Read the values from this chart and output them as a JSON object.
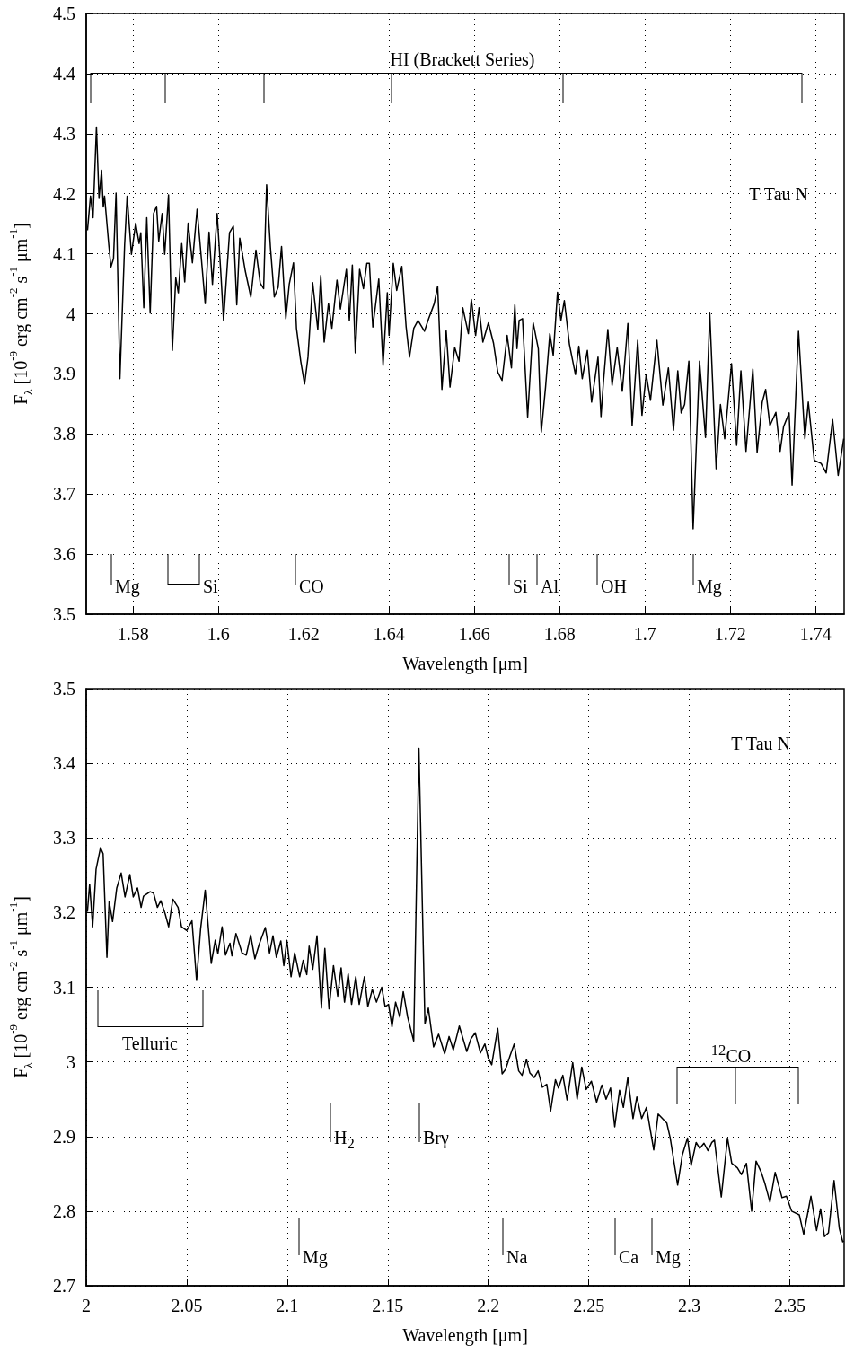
{
  "chart_data": [
    {
      "type": "line",
      "xlabel": "Wavelength [μm]",
      "ylabel": "F$_{λ}$ [10$^{-9}$ erg cm$^{-2}$ s$^{-1}$ μm$^{-1}$]",
      "xlim": [
        1.569,
        1.7467
      ],
      "ylim": [
        3.5,
        4.5
      ],
      "xticks": [
        1.58,
        1.6,
        1.62,
        1.64,
        1.66,
        1.68,
        1.7,
        1.72,
        1.74
      ],
      "yticks": [
        3.5,
        3.6,
        3.7,
        3.8,
        3.9,
        4,
        4.1,
        4.2,
        4.3,
        4.4,
        4.5
      ],
      "grid": true,
      "marker": "none",
      "line_style": "solid",
      "annotations": [
        "T Tau N",
        "HI (Brackett Series)",
        "Mg",
        "Si",
        "CO",
        "Si",
        "Al",
        "OH",
        "Mg"
      ],
      "series": [
        {
          "color": "#000000",
          "x": [
            1.5693,
            1.57,
            1.5706,
            1.5714,
            1.572,
            1.5726,
            1.573,
            1.5733,
            1.5743,
            1.5748,
            1.5754,
            1.576,
            1.5769,
            1.578,
            1.5786,
            1.5796,
            1.5806,
            1.5814,
            1.5818,
            1.5825,
            1.5832,
            1.584,
            1.5848,
            1.5855,
            1.586,
            1.5868,
            1.5874,
            1.5883,
            1.5892,
            1.59,
            1.5906,
            1.5914,
            1.5921,
            1.5929,
            1.5939,
            1.595,
            1.596,
            1.5969,
            1.5978,
            1.5986,
            1.5997,
            1.6006,
            1.6012,
            1.6026,
            1.6035,
            1.6043,
            1.605,
            1.6063,
            1.6076,
            1.6088,
            1.6098,
            1.6106,
            1.6113,
            1.6122,
            1.6131,
            1.614,
            1.6148,
            1.6158,
            1.6166,
            1.6176,
            1.6183,
            1.6193,
            1.6202,
            1.621,
            1.6221,
            1.6233,
            1.624,
            1.6248,
            1.6258,
            1.6266,
            1.6278,
            1.6286,
            1.63,
            1.6307,
            1.6314,
            1.6321,
            1.6331,
            1.634,
            1.6348,
            1.6354,
            1.6362,
            1.6376,
            1.6386,
            1.6396,
            1.64,
            1.641,
            1.6418,
            1.643,
            1.644,
            1.6448,
            1.6458,
            1.6468,
            1.6483,
            1.6493,
            1.6506,
            1.6514,
            1.6524,
            1.6534,
            1.6543,
            1.6554,
            1.6564,
            1.6573,
            1.6586,
            1.6593,
            1.6603,
            1.6611,
            1.662,
            1.6633,
            1.6645,
            1.6655,
            1.6665,
            1.6677,
            1.6687,
            1.6695,
            1.67,
            1.6705,
            1.6713,
            1.6725,
            1.6738,
            1.675,
            1.6757,
            1.6767,
            1.6777,
            1.6785,
            1.6795,
            1.6803,
            1.6811,
            1.6823,
            1.6837,
            1.6845,
            1.6853,
            1.6865,
            1.6875,
            1.689,
            1.6897,
            1.6903,
            1.6913,
            1.6923,
            1.6935,
            1.6947,
            1.696,
            1.697,
            1.6983,
            1.6993,
            1.7003,
            1.7013,
            1.7028,
            1.7042,
            1.7055,
            1.7067,
            1.7077,
            1.7085,
            1.7093,
            1.7103,
            1.7113,
            1.7128,
            1.7142,
            1.7152,
            1.7167,
            1.7177,
            1.7187,
            1.7203,
            1.7215,
            1.7225,
            1.7237,
            1.7253,
            1.7263,
            1.7275,
            1.7283,
            1.7293,
            1.7307,
            1.7317,
            1.7325,
            1.7338,
            1.7345,
            1.736,
            1.7375,
            1.7383,
            1.7397,
            1.7413,
            1.7425,
            1.744,
            1.7453,
            1.7466
          ],
          "values": [
            4.139,
            4.196,
            4.16,
            4.311,
            4.192,
            4.239,
            4.178,
            4.196,
            4.114,
            4.078,
            4.092,
            4.201,
            3.892,
            4.114,
            4.196,
            4.099,
            4.151,
            4.117,
            4.135,
            4.01,
            4.16,
            4.001,
            4.167,
            4.179,
            4.121,
            4.167,
            4.099,
            4.198,
            3.939,
            4.06,
            4.035,
            4.117,
            4.053,
            4.151,
            4.085,
            4.174,
            4.092,
            4.017,
            4.136,
            4.049,
            4.167,
            4.064,
            3.989,
            4.135,
            4.146,
            4.015,
            4.126,
            4.071,
            4.028,
            4.106,
            4.051,
            4.042,
            4.215,
            4.11,
            4.028,
            4.044,
            4.112,
            3.992,
            4.049,
            4.085,
            3.976,
            3.921,
            3.883,
            3.928,
            4.052,
            3.974,
            4.064,
            3.953,
            4.017,
            3.976,
            4.056,
            4.008,
            4.074,
            3.989,
            4.081,
            3.935,
            4.074,
            4.042,
            4.084,
            4.084,
            3.978,
            4.058,
            3.914,
            4.035,
            3.964,
            4.084,
            4.039,
            4.079,
            3.979,
            3.928,
            3.976,
            3.989,
            3.971,
            3.992,
            4.017,
            4.046,
            3.874,
            3.972,
            3.878,
            3.944,
            3.921,
            4.01,
            3.967,
            4.024,
            3.964,
            4.01,
            3.953,
            3.985,
            3.951,
            3.903,
            3.889,
            3.964,
            3.91,
            4.015,
            3.942,
            3.989,
            3.992,
            3.828,
            3.985,
            3.942,
            3.803,
            3.878,
            3.967,
            3.931,
            4.036,
            3.989,
            4.022,
            3.949,
            3.899,
            3.946,
            3.892,
            3.939,
            3.853,
            3.928,
            3.829,
            3.889,
            3.974,
            3.881,
            3.944,
            3.871,
            3.984,
            3.814,
            3.956,
            3.831,
            3.899,
            3.856,
            3.956,
            3.848,
            3.91,
            3.806,
            3.905,
            3.835,
            3.849,
            3.921,
            3.642,
            3.921,
            3.794,
            4.001,
            3.742,
            3.849,
            3.792,
            3.917,
            3.781,
            3.905,
            3.771,
            3.908,
            3.769,
            3.853,
            3.874,
            3.814,
            3.836,
            3.771,
            3.812,
            3.835,
            3.715,
            3.971,
            3.792,
            3.853,
            3.756,
            3.751,
            3.735,
            3.824,
            3.731,
            3.792
          ]
        }
      ]
    },
    {
      "type": "line",
      "xlabel": "Wavelength [μm]",
      "ylabel": "F$_{λ}$ [10$^{-9}$ erg cm$^{-2}$ s$^{-1}$ μm$^{-1}$]",
      "xlim": [
        2,
        2.377
      ],
      "ylim": [
        2.7,
        3.5
      ],
      "xticks": [
        2,
        2.05,
        2.1,
        2.15,
        2.2,
        2.25,
        2.3,
        2.35
      ],
      "yticks": [
        2.7,
        2.8,
        2.9,
        3,
        3.1,
        3.2,
        3.3,
        3.4,
        3.5
      ],
      "grid": true,
      "marker": "none",
      "line_style": "solid",
      "annotations": [
        "T Tau N",
        "Telluric",
        "$^{12}$CO",
        "H$_{2}$",
        "Brγ",
        "Mg",
        "Na",
        "Ca",
        "Mg"
      ],
      "series": [
        {
          "color": "#000000",
          "x": [
            2.0006,
            2.0017,
            2.0032,
            2.0049,
            2.0071,
            2.0084,
            2.0103,
            2.0114,
            2.0131,
            2.0152,
            2.0174,
            2.0193,
            2.0217,
            2.0234,
            2.0255,
            2.0273,
            2.0285,
            2.0318,
            2.0335,
            2.0354,
            2.0371,
            2.0393,
            2.041,
            2.0431,
            2.0457,
            2.0474,
            2.05,
            2.0526,
            2.0549,
            2.0569,
            2.0592,
            2.0622,
            2.0642,
            2.0655,
            2.0676,
            2.0693,
            2.0715,
            2.0725,
            2.0745,
            2.0775,
            2.0796,
            2.0818,
            2.0839,
            2.0861,
            2.0891,
            2.0912,
            2.0929,
            2.0946,
            2.0968,
            2.0983,
            2.0998,
            2.1019,
            2.1037,
            2.1062,
            2.1079,
            2.1097,
            2.1109,
            2.1127,
            2.1148,
            2.117,
            2.1187,
            2.1208,
            2.123,
            2.1251,
            2.1268,
            2.1285,
            2.1303,
            2.132,
            2.1341,
            2.1358,
            2.1384,
            2.1401,
            2.1423,
            2.1444,
            2.147,
            2.1487,
            2.1504,
            2.1521,
            2.1539,
            2.156,
            2.1577,
            2.1599,
            2.1629,
            2.1655,
            2.1685,
            2.1702,
            2.1728,
            2.1753,
            2.1783,
            2.1805,
            2.1826,
            2.1856,
            2.1893,
            2.1914,
            2.1935,
            2.1961,
            2.1983,
            2.2,
            2.2017,
            2.2047,
            2.2069,
            2.2086,
            2.2108,
            2.2129,
            2.2151,
            2.2168,
            2.219,
            2.2207,
            2.2228,
            2.2248,
            2.2269,
            2.2291,
            2.231,
            2.2334,
            2.2349,
            2.2371,
            2.2392,
            2.242,
            2.2442,
            2.2465,
            2.2487,
            2.2513,
            2.2539,
            2.2565,
            2.2586,
            2.2608,
            2.2629,
            2.2653,
            2.2672,
            2.2694,
            2.272,
            2.2739,
            2.2763,
            2.2787,
            2.2823,
            2.2845,
            2.2888,
            2.2905,
            2.2942,
            2.2965,
            2.2991,
            2.3009,
            2.3034,
            2.3052,
            2.3073,
            2.3093,
            2.3112,
            2.3125,
            2.3159,
            2.319,
            2.3211,
            2.3239,
            2.3259,
            2.3284,
            2.331,
            2.3332,
            2.3358,
            2.3375,
            2.3401,
            2.3427,
            2.3461,
            2.3483,
            2.3509,
            2.3547,
            2.3569,
            2.3605,
            2.3633,
            2.3653,
            2.3672,
            2.3692,
            2.372,
            2.3746,
            2.3763,
            2.3769
          ],
          "values": [
            3.201,
            3.238,
            3.181,
            3.258,
            3.287,
            3.279,
            3.14,
            3.215,
            3.188,
            3.233,
            3.253,
            3.221,
            3.251,
            3.221,
            3.233,
            3.207,
            3.222,
            3.228,
            3.226,
            3.207,
            3.216,
            3.198,
            3.181,
            3.218,
            3.207,
            3.181,
            3.176,
            3.189,
            3.109,
            3.178,
            3.23,
            3.132,
            3.163,
            3.145,
            3.181,
            3.143,
            3.159,
            3.142,
            3.172,
            3.146,
            3.143,
            3.17,
            3.138,
            3.158,
            3.18,
            3.146,
            3.169,
            3.14,
            3.162,
            3.129,
            3.163,
            3.114,
            3.146,
            3.114,
            3.136,
            3.117,
            3.155,
            3.124,
            3.169,
            3.072,
            3.152,
            3.071,
            3.129,
            3.088,
            3.126,
            3.08,
            3.118,
            3.077,
            3.114,
            3.077,
            3.114,
            3.074,
            3.097,
            3.08,
            3.1,
            3.074,
            3.077,
            3.047,
            3.08,
            3.06,
            3.094,
            3.06,
            3.028,
            3.42,
            3.051,
            3.072,
            3.02,
            3.037,
            3.011,
            3.034,
            3.016,
            3.048,
            3.014,
            3.031,
            3.039,
            3.012,
            3.024,
            3.005,
            2.996,
            3.045,
            2.984,
            2.99,
            3.008,
            3.024,
            2.988,
            2.982,
            3.003,
            2.985,
            2.979,
            2.988,
            2.966,
            2.97,
            2.934,
            2.976,
            2.965,
            2.982,
            2.949,
            2.999,
            2.95,
            2.993,
            2.963,
            2.974,
            2.946,
            2.969,
            2.95,
            2.965,
            2.913,
            2.962,
            2.939,
            2.979,
            2.924,
            2.953,
            2.924,
            2.939,
            2.882,
            2.93,
            2.918,
            2.898,
            2.835,
            2.875,
            2.898,
            2.861,
            2.892,
            2.884,
            2.891,
            2.881,
            2.892,
            2.895,
            2.819,
            2.898,
            2.864,
            2.858,
            2.849,
            2.864,
            2.8,
            2.867,
            2.852,
            2.838,
            2.812,
            2.852,
            2.818,
            2.82,
            2.8,
            2.795,
            2.769,
            2.82,
            2.774,
            2.803,
            2.766,
            2.771,
            2.841,
            2.777,
            2.759,
            2.76
          ]
        }
      ]
    }
  ]
}
